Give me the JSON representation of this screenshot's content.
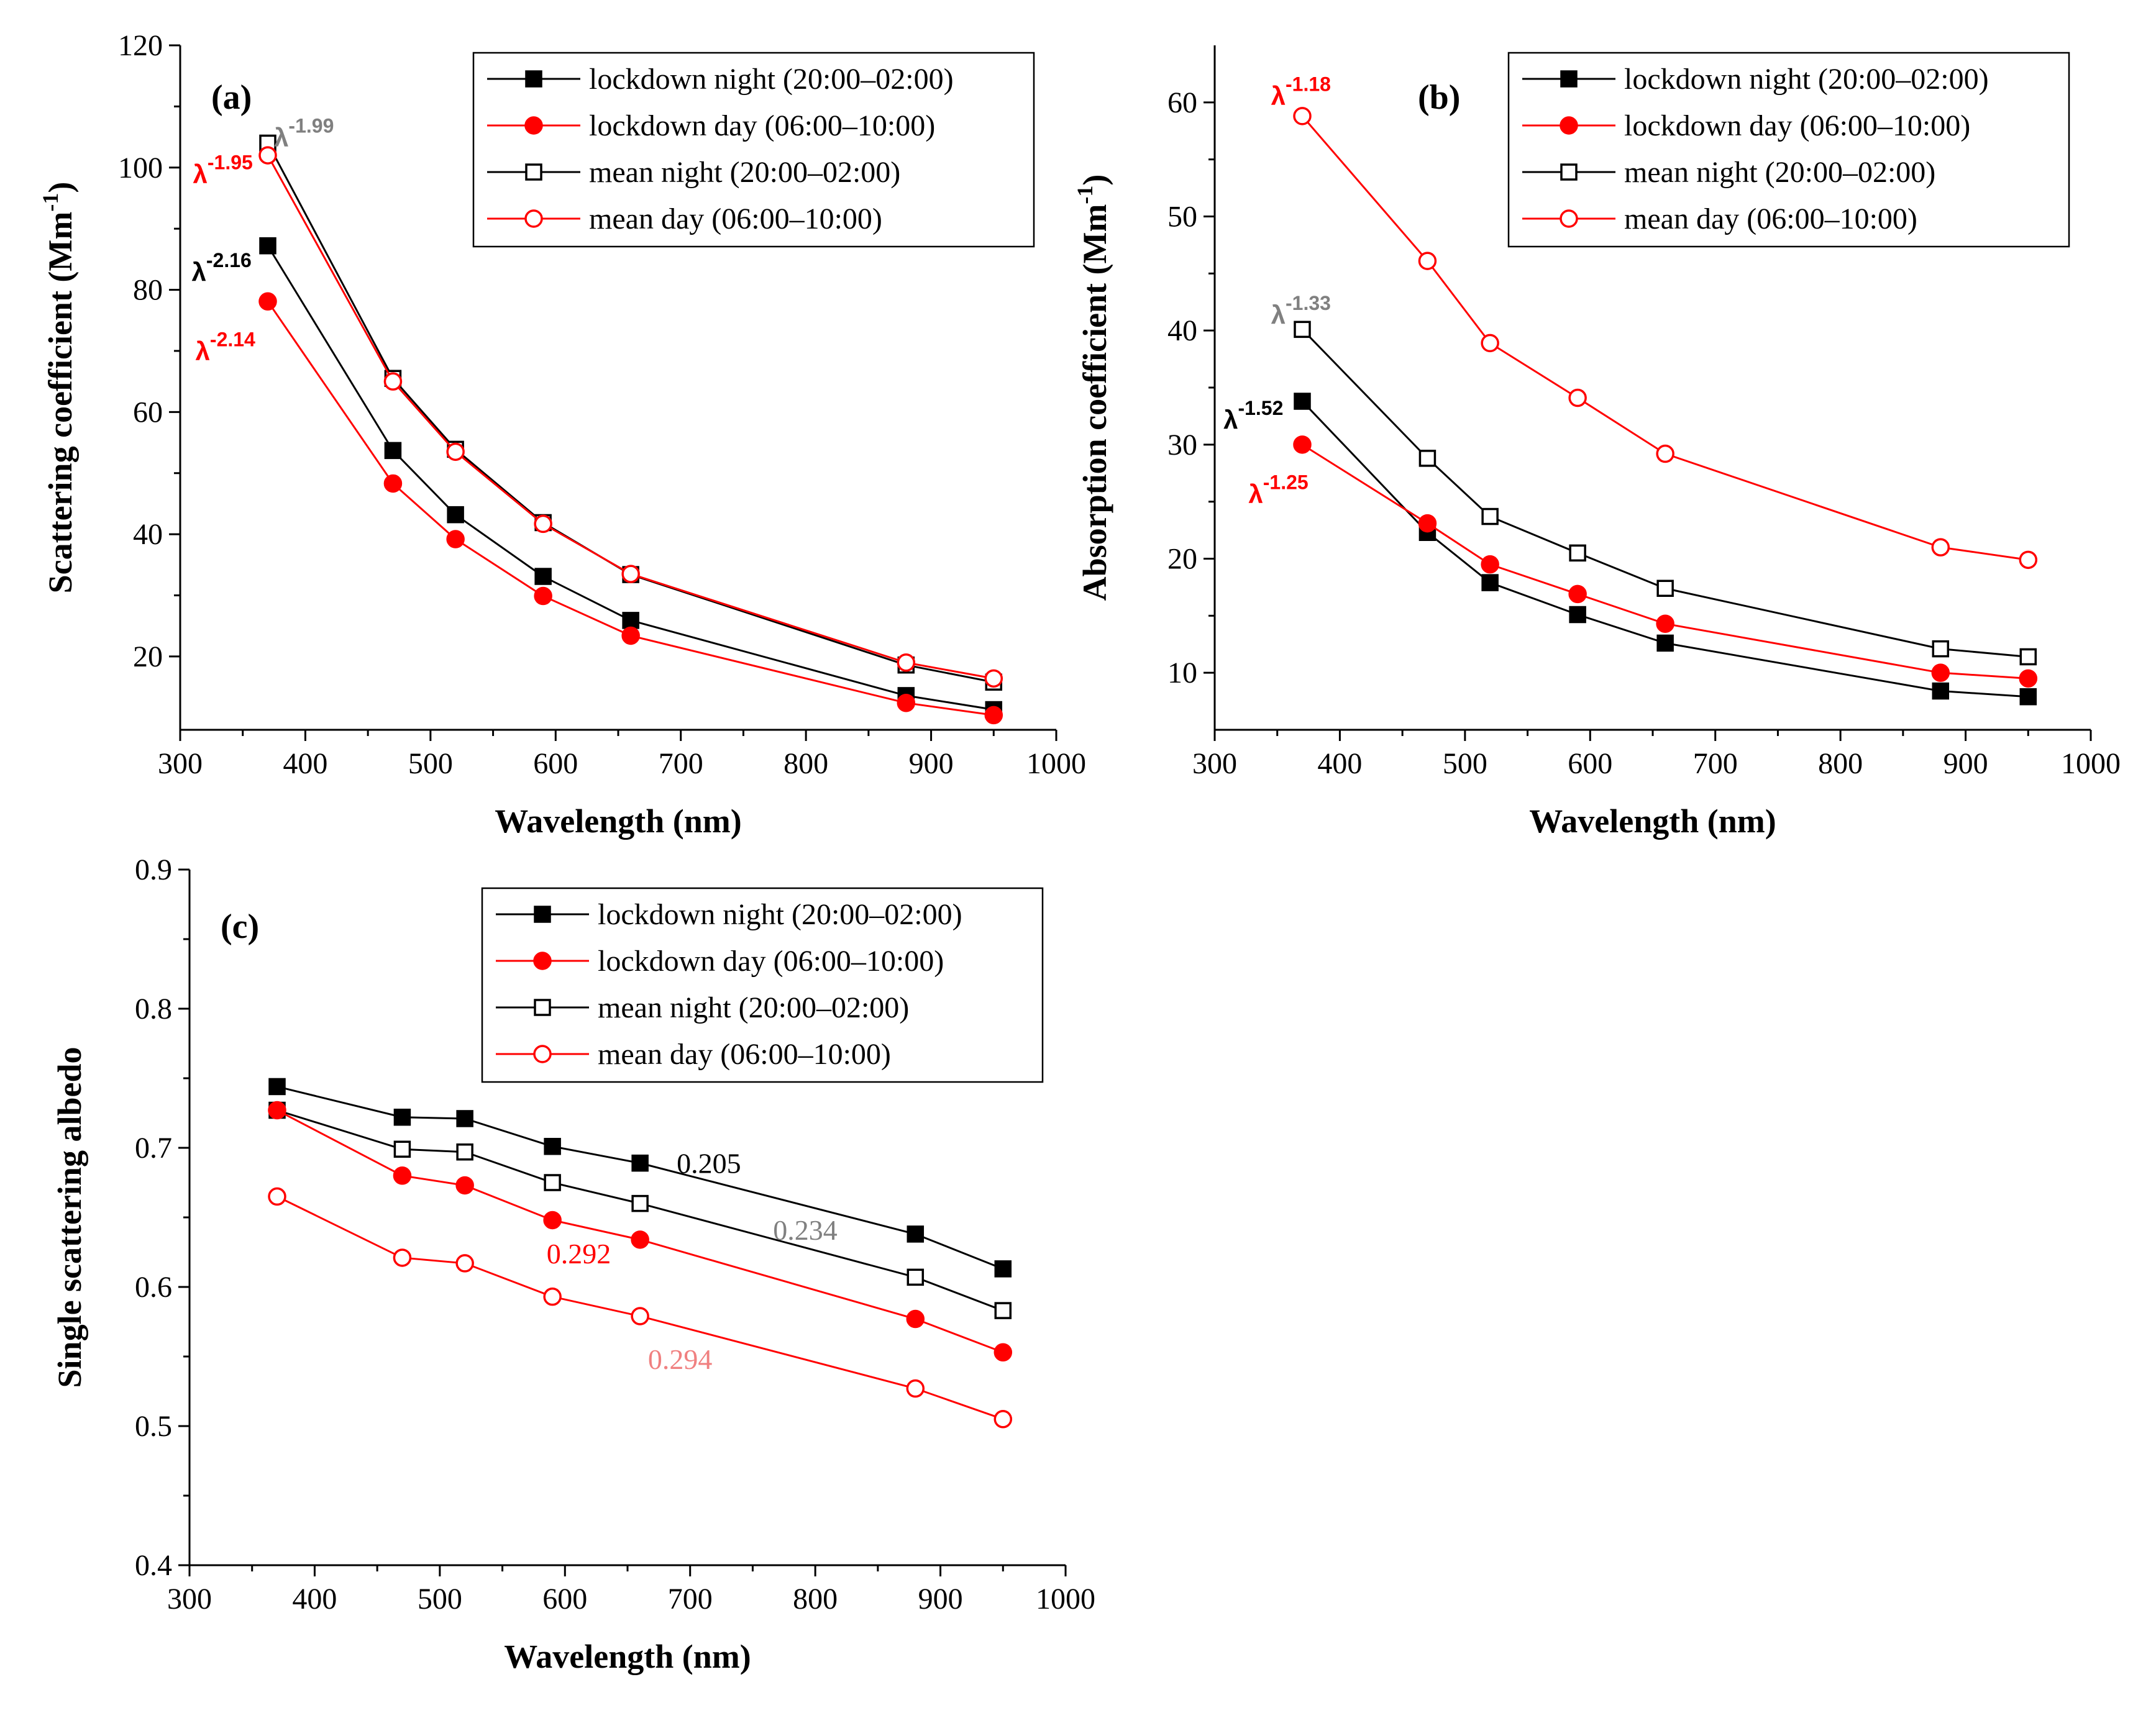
{
  "chart_data": [
    {
      "type": "line",
      "panel_label": "(a)",
      "xlabel": "Wavelength (nm)",
      "ylabel": {
        "main": "Scattering coefficient (Mm",
        "sup": "-1",
        "close": ")"
      },
      "xlim": [
        300,
        1000
      ],
      "ylim": [
        8,
        120
      ],
      "xticks": [
        300,
        400,
        500,
        600,
        700,
        800,
        900,
        1000
      ],
      "yticks": [
        20,
        40,
        60,
        80,
        100,
        120
      ],
      "x": [
        370,
        470,
        520,
        590,
        660,
        880,
        950
      ],
      "series": [
        {
          "name": "lockdown night (20:00–02:00)",
          "color": "#000000",
          "marker": "square-filled",
          "values": [
            87.2,
            53.7,
            43.2,
            33.1,
            25.9,
            13.6,
            11.3
          ]
        },
        {
          "name": "lockdown day (06:00–10:00)",
          "color": "#ff0000",
          "marker": "circle-filled",
          "values": [
            78.1,
            48.3,
            39.2,
            29.9,
            23.4,
            12.4,
            10.4
          ]
        },
        {
          "name": "mean night (20:00–02:00)",
          "color": "#000000",
          "marker": "square-open",
          "values": [
            104.0,
            65.5,
            53.9,
            41.9,
            33.4,
            18.6,
            15.8
          ]
        },
        {
          "name": "mean day (06:00–10:00)",
          "color": "#ff0000",
          "marker": "circle-open",
          "values": [
            102.0,
            65.0,
            53.5,
            41.7,
            33.5,
            19.0,
            16.4
          ]
        }
      ],
      "annotations": [
        {
          "base": "λ",
          "sup": "-1.99",
          "color": "#808080",
          "x": 375,
          "y": 103.5,
          "anchor": "start"
        },
        {
          "base": "λ",
          "sup": "-1.95",
          "color": "#ff0000",
          "x": 358,
          "y": 97.5,
          "anchor": "end"
        },
        {
          "base": "λ",
          "sup": "-2.16",
          "color": "#000000",
          "x": 357,
          "y": 81.5,
          "anchor": "end"
        },
        {
          "base": "λ",
          "sup": "-2.14",
          "color": "#ff0000",
          "x": 360,
          "y": 68.5,
          "anchor": "end"
        }
      ]
    },
    {
      "type": "line",
      "panel_label": "(b)",
      "xlabel": "Wavelength (nm)",
      "ylabel": {
        "main": "Absorption coefficient (Mm",
        "sup": "-1",
        "close": ")"
      },
      "xlim": [
        300,
        1000
      ],
      "ylim": [
        5,
        65
      ],
      "xticks": [
        300,
        400,
        500,
        600,
        700,
        800,
        900,
        1000
      ],
      "yticks": [
        10,
        20,
        30,
        40,
        50,
        60
      ],
      "x": [
        370,
        470,
        520,
        590,
        660,
        880,
        950
      ],
      "series": [
        {
          "name": "lockdown night (20:00–02:00)",
          "color": "#000000",
          "marker": "square-filled",
          "values": [
            33.8,
            22.3,
            17.9,
            15.1,
            12.6,
            8.4,
            7.9
          ]
        },
        {
          "name": "lockdown day (06:00–10:00)",
          "color": "#ff0000",
          "marker": "circle-filled",
          "values": [
            30.0,
            23.1,
            19.5,
            16.9,
            14.3,
            10.0,
            9.5
          ]
        },
        {
          "name": "mean night (20:00–02:00)",
          "color": "#000000",
          "marker": "square-open",
          "values": [
            40.1,
            28.8,
            23.7,
            20.5,
            17.4,
            12.1,
            11.4
          ]
        },
        {
          "name": "mean day (06:00–10:00)",
          "color": "#ff0000",
          "marker": "circle-open",
          "values": [
            58.8,
            46.1,
            38.9,
            34.1,
            29.2,
            21.0,
            19.9
          ]
        }
      ],
      "annotations": [
        {
          "base": "λ",
          "sup": "-1.18",
          "color": "#ff0000",
          "x": 345,
          "y": 59.8,
          "anchor": "start"
        },
        {
          "base": "λ",
          "sup": "-1.33",
          "color": "#808080",
          "x": 345,
          "y": 40.6,
          "anchor": "start"
        },
        {
          "base": "λ",
          "sup": "-1.52",
          "color": "#000000",
          "x": 307,
          "y": 31.4,
          "anchor": "start"
        },
        {
          "base": "λ",
          "sup": "-1.25",
          "color": "#ff0000",
          "x": 327,
          "y": 24.9,
          "anchor": "start"
        }
      ]
    },
    {
      "type": "line",
      "panel_label": "(c)",
      "xlabel": "Wavelength (nm)",
      "ylabel": {
        "main": "Single scattering albedo",
        "sup": "",
        "close": ""
      },
      "xlim": [
        300,
        1000
      ],
      "ylim": [
        0.4,
        0.9
      ],
      "xticks": [
        300,
        400,
        500,
        600,
        700,
        800,
        900,
        1000
      ],
      "yticks": [
        0.4,
        0.5,
        0.6,
        0.7,
        0.8,
        0.9
      ],
      "x": [
        370,
        470,
        520,
        590,
        660,
        880,
        950
      ],
      "series": [
        {
          "name": "lockdown night (20:00–02:00)",
          "color": "#000000",
          "marker": "square-filled",
          "values": [
            0.744,
            0.722,
            0.721,
            0.701,
            0.689,
            0.638,
            0.613
          ]
        },
        {
          "name": "lockdown day (06:00–10:00)",
          "color": "#ff0000",
          "marker": "circle-filled",
          "values": [
            0.727,
            0.68,
            0.673,
            0.648,
            0.634,
            0.577,
            0.553
          ]
        },
        {
          "name": "mean night (20:00–02:00)",
          "color": "#000000",
          "marker": "square-open",
          "values": [
            0.727,
            0.699,
            0.697,
            0.675,
            0.66,
            0.607,
            0.583
          ]
        },
        {
          "name": "mean day (06:00–10:00)",
          "color": "#ff0000",
          "marker": "circle-open",
          "values": [
            0.665,
            0.621,
            0.617,
            0.593,
            0.579,
            0.527,
            0.505
          ]
        }
      ],
      "annotations": [
        {
          "text": "0.205",
          "color": "#000000",
          "x": 715,
          "y": 0.682,
          "anchor": "middle"
        },
        {
          "text": "0.234",
          "color": "#808080",
          "x": 792,
          "y": 0.634,
          "anchor": "middle"
        },
        {
          "text": "0.292",
          "color": "#ff0000",
          "x": 611,
          "y": 0.617,
          "anchor": "middle"
        },
        {
          "text": "0.294",
          "color": "#f08080",
          "x": 692,
          "y": 0.541,
          "anchor": "middle"
        }
      ]
    }
  ]
}
